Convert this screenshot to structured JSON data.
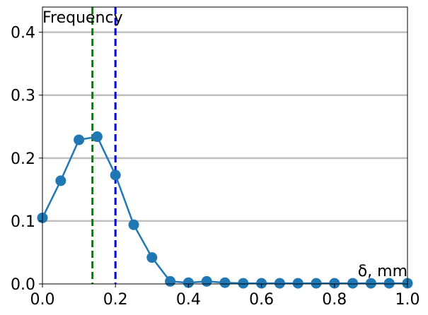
{
  "chart_data": {
    "type": "line",
    "title": "",
    "xlabel": "δ, mm",
    "ylabel": "Frequency",
    "xlim": [
      0,
      1.0
    ],
    "ylim": [
      0,
      0.44
    ],
    "grid": "horizontal",
    "xticks": [
      0.0,
      0.2,
      0.4,
      0.6,
      0.8,
      1.0
    ],
    "xtick_labels": [
      "0.0",
      "0.2",
      "0.4",
      "0.6",
      "0.8",
      "1.0"
    ],
    "yticks": [
      0.0,
      0.1,
      0.2,
      0.3,
      0.4
    ],
    "ytick_labels": [
      "0.0",
      "0.1",
      "0.2",
      "0.3",
      "0.4"
    ],
    "series": [
      {
        "color": "#1f77b4",
        "x": [
          0.0,
          0.05,
          0.1,
          0.15,
          0.2,
          0.25,
          0.3,
          0.35,
          0.4,
          0.45,
          0.5,
          0.55,
          0.6,
          0.65,
          0.7,
          0.75,
          0.8,
          0.85,
          0.9,
          0.95,
          1.0
        ],
        "y": [
          0.105,
          0.164,
          0.229,
          0.234,
          0.173,
          0.094,
          0.042,
          0.004,
          0.002,
          0.004,
          0.002,
          0.001,
          0.001,
          0.001,
          0.001,
          0.001,
          0.001,
          0.001,
          0.001,
          0.001,
          0.001
        ]
      }
    ],
    "vlines": [
      {
        "x": 0.137,
        "color": "#008000",
        "style": "dashed"
      },
      {
        "x": 0.2,
        "color": "#0000cc",
        "style": "dashed"
      }
    ]
  }
}
